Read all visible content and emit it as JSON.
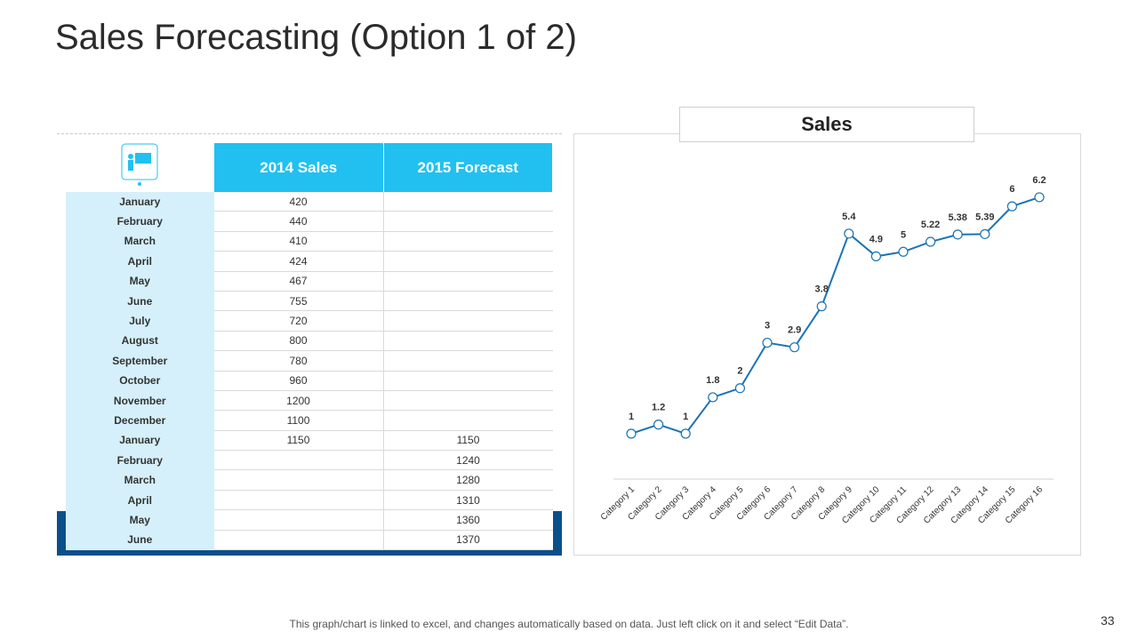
{
  "title": "Sales Forecasting (Option 1 of 2)",
  "table": {
    "headers": [
      "2014 Sales",
      "2015 Forecast"
    ],
    "rows": [
      [
        "January",
        420,
        null
      ],
      [
        "February",
        440,
        null
      ],
      [
        "March",
        410,
        null
      ],
      [
        "April",
        424,
        null
      ],
      [
        "May",
        467,
        null
      ],
      [
        "June",
        755,
        null
      ],
      [
        "July",
        720,
        null
      ],
      [
        "August",
        800,
        null
      ],
      [
        "September",
        780,
        null
      ],
      [
        "October",
        960,
        null
      ],
      [
        "November",
        1200,
        null
      ],
      [
        "December",
        1100,
        null
      ],
      [
        "January",
        1150,
        1150
      ],
      [
        "February",
        null,
        1240
      ],
      [
        "March",
        null,
        1280
      ],
      [
        "April",
        null,
        1310
      ],
      [
        "May",
        null,
        1360
      ],
      [
        "June",
        null,
        1370
      ]
    ]
  },
  "chart_data": {
    "type": "line",
    "title": "Sales",
    "categories": [
      "Category 1",
      "Category 2",
      "Category 3",
      "Category 4",
      "Category 5",
      "Category 6",
      "Category 7",
      "Category 8",
      "Category 9",
      "Category 10",
      "Category 11",
      "Category 12",
      "Category 13",
      "Category 14",
      "Category 15",
      "Category 16"
    ],
    "values": [
      1,
      1.2,
      1,
      1.8,
      2,
      3,
      2.9,
      3.8,
      5.4,
      4.9,
      5,
      5.22,
      5.38,
      5.39,
      6,
      6.2
    ],
    "color": "#1a73b5",
    "ylim": [
      0,
      7
    ]
  },
  "footer": "This graph/chart is linked to excel, and changes automatically based on data. Just left click on it and select “Edit Data”.",
  "page_number": "33"
}
